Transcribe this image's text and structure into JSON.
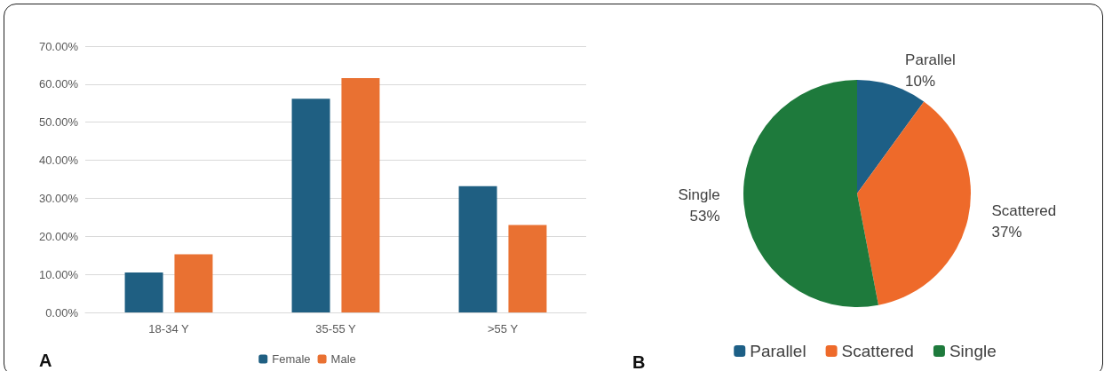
{
  "chart_data": [
    {
      "type": "bar",
      "categories": [
        "18-34 Y",
        "35-55 Y",
        ">55 Y"
      ],
      "series": [
        {
          "name": "Female",
          "color": "#1f5f82",
          "values": [
            10.5,
            56.2,
            33.2
          ]
        },
        {
          "name": "Male",
          "color": "#e97132",
          "values": [
            15.3,
            61.6,
            23.0
          ]
        }
      ],
      "ylim": [
        0,
        70
      ],
      "yticks": [
        {
          "value": 0,
          "label": "0.00%"
        },
        {
          "value": 10,
          "label": "10.00%"
        },
        {
          "value": 20,
          "label": "20.00%"
        },
        {
          "value": 30,
          "label": "30.00%"
        },
        {
          "value": 40,
          "label": "40.00%"
        },
        {
          "value": 50,
          "label": "50.00%"
        },
        {
          "value": 60,
          "label": "60.00%"
        },
        {
          "value": 70,
          "label": "70.00%"
        }
      ],
      "grid": "y",
      "legend": "bottom",
      "annotations": [
        "A"
      ]
    },
    {
      "type": "pie",
      "categories": [
        "Parallel",
        "Scattered",
        "Single"
      ],
      "values": [
        10,
        37,
        53
      ],
      "colors": [
        "#1d5f86",
        "#ee6a2a",
        "#1e7a3c"
      ],
      "value_labels": [
        "10%",
        "37%",
        "53%"
      ],
      "legend": "bottom",
      "annotations": [
        "B"
      ]
    }
  ]
}
